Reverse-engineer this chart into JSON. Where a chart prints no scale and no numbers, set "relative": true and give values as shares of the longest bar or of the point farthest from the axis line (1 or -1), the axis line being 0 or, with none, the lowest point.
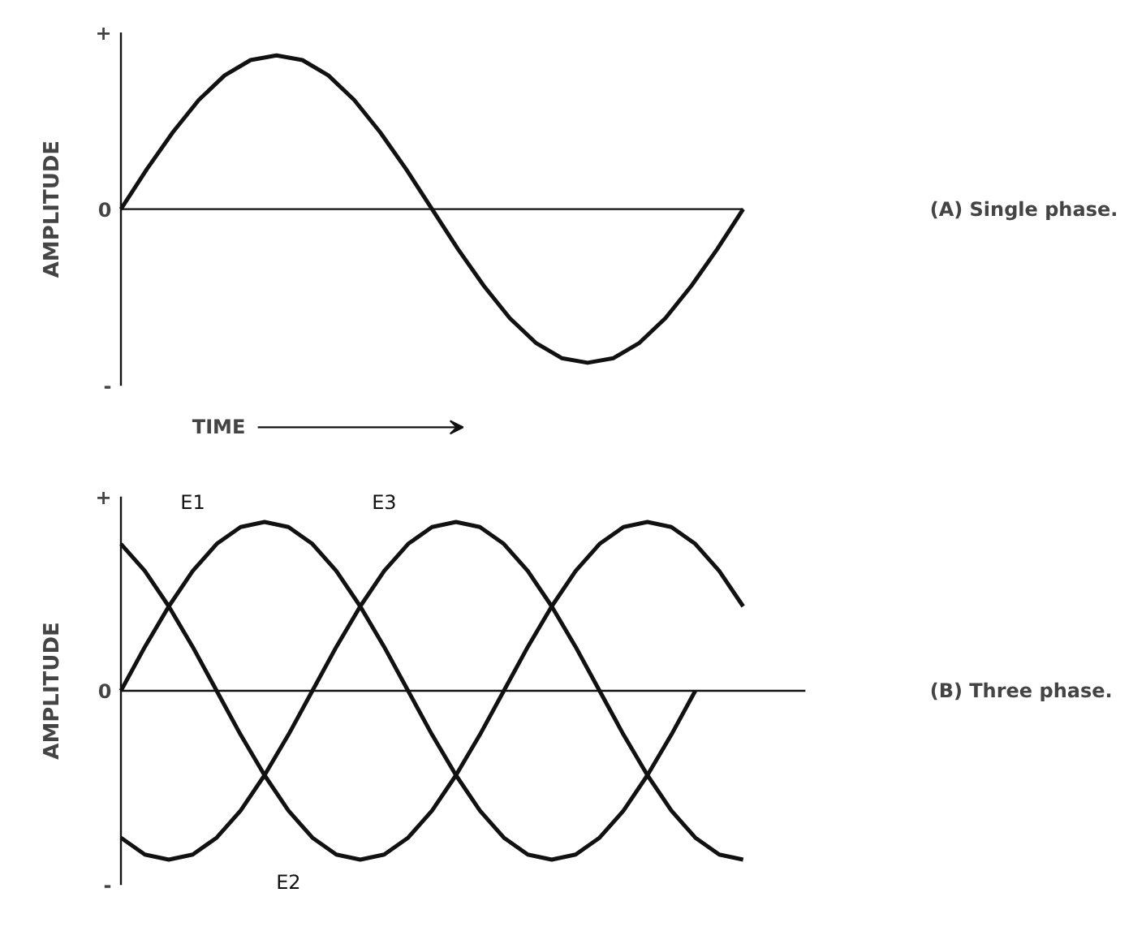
{
  "chart_data": [
    {
      "type": "line",
      "relative": true,
      "ylabel": "AMPLITUDE",
      "xlabel": "TIME",
      "annotations": [
        "+",
        "0",
        "-",
        "(A) Single phase."
      ],
      "categories": [
        null,
        null,
        null,
        null,
        null,
        null,
        null,
        null,
        null,
        null,
        null,
        null,
        null,
        null,
        null,
        null,
        null,
        null,
        null,
        null,
        null,
        null,
        null,
        null,
        null
      ],
      "series": [
        {
          "color": "#111111",
          "values": [
            0,
            0.26,
            0.5,
            0.71,
            0.87,
            0.97,
            1,
            0.97,
            0.87,
            0.71,
            0.5,
            0.26,
            0,
            -0.26,
            -0.5,
            -0.71,
            -0.87,
            -0.97,
            -1,
            -0.97,
            -0.87,
            -0.71,
            -0.5,
            -0.26,
            0
          ]
        }
      ]
    },
    {
      "type": "line",
      "relative": true,
      "ylabel": "AMPLITUDE",
      "annotations": [
        "+",
        "0",
        "-",
        "(B) Three phase."
      ],
      "categories": [
        null,
        null,
        null,
        null,
        null,
        null,
        null,
        null,
        null,
        null,
        null,
        null,
        null,
        null,
        null,
        null,
        null,
        null,
        null,
        null,
        null,
        null,
        null,
        null,
        null,
        null,
        null
      ],
      "series": [
        {
          "name": "E1",
          "color": "#111111",
          "values": [
            0,
            0.26,
            0.5,
            0.71,
            0.87,
            0.97,
            1,
            0.97,
            0.87,
            0.71,
            0.5,
            0.26,
            0,
            -0.26,
            -0.5,
            -0.71,
            -0.87,
            -0.97,
            -1,
            -0.97,
            -0.87,
            -0.71,
            -0.5,
            -0.26,
            0,
            null,
            null
          ]
        },
        {
          "name": "E2",
          "color": "#111111",
          "values": [
            0.87,
            0.71,
            0.5,
            0.26,
            0,
            -0.26,
            -0.5,
            -0.71,
            -0.87,
            -0.97,
            -1,
            -0.97,
            -0.87,
            -0.71,
            -0.5,
            -0.26,
            0,
            0.26,
            0.5,
            0.71,
            0.87,
            0.97,
            1,
            0.97,
            0.87,
            0.71,
            0.5
          ]
        },
        {
          "name": "E3",
          "color": "#111111",
          "values": [
            -0.87,
            -0.97,
            -1,
            -0.97,
            -0.87,
            -0.71,
            -0.5,
            -0.26,
            0,
            0.26,
            0.5,
            0.71,
            0.87,
            0.97,
            1,
            0.97,
            0.87,
            0.71,
            0.5,
            0.26,
            0,
            -0.26,
            -0.5,
            -0.71,
            -0.87,
            -0.97,
            -1
          ]
        }
      ]
    }
  ]
}
